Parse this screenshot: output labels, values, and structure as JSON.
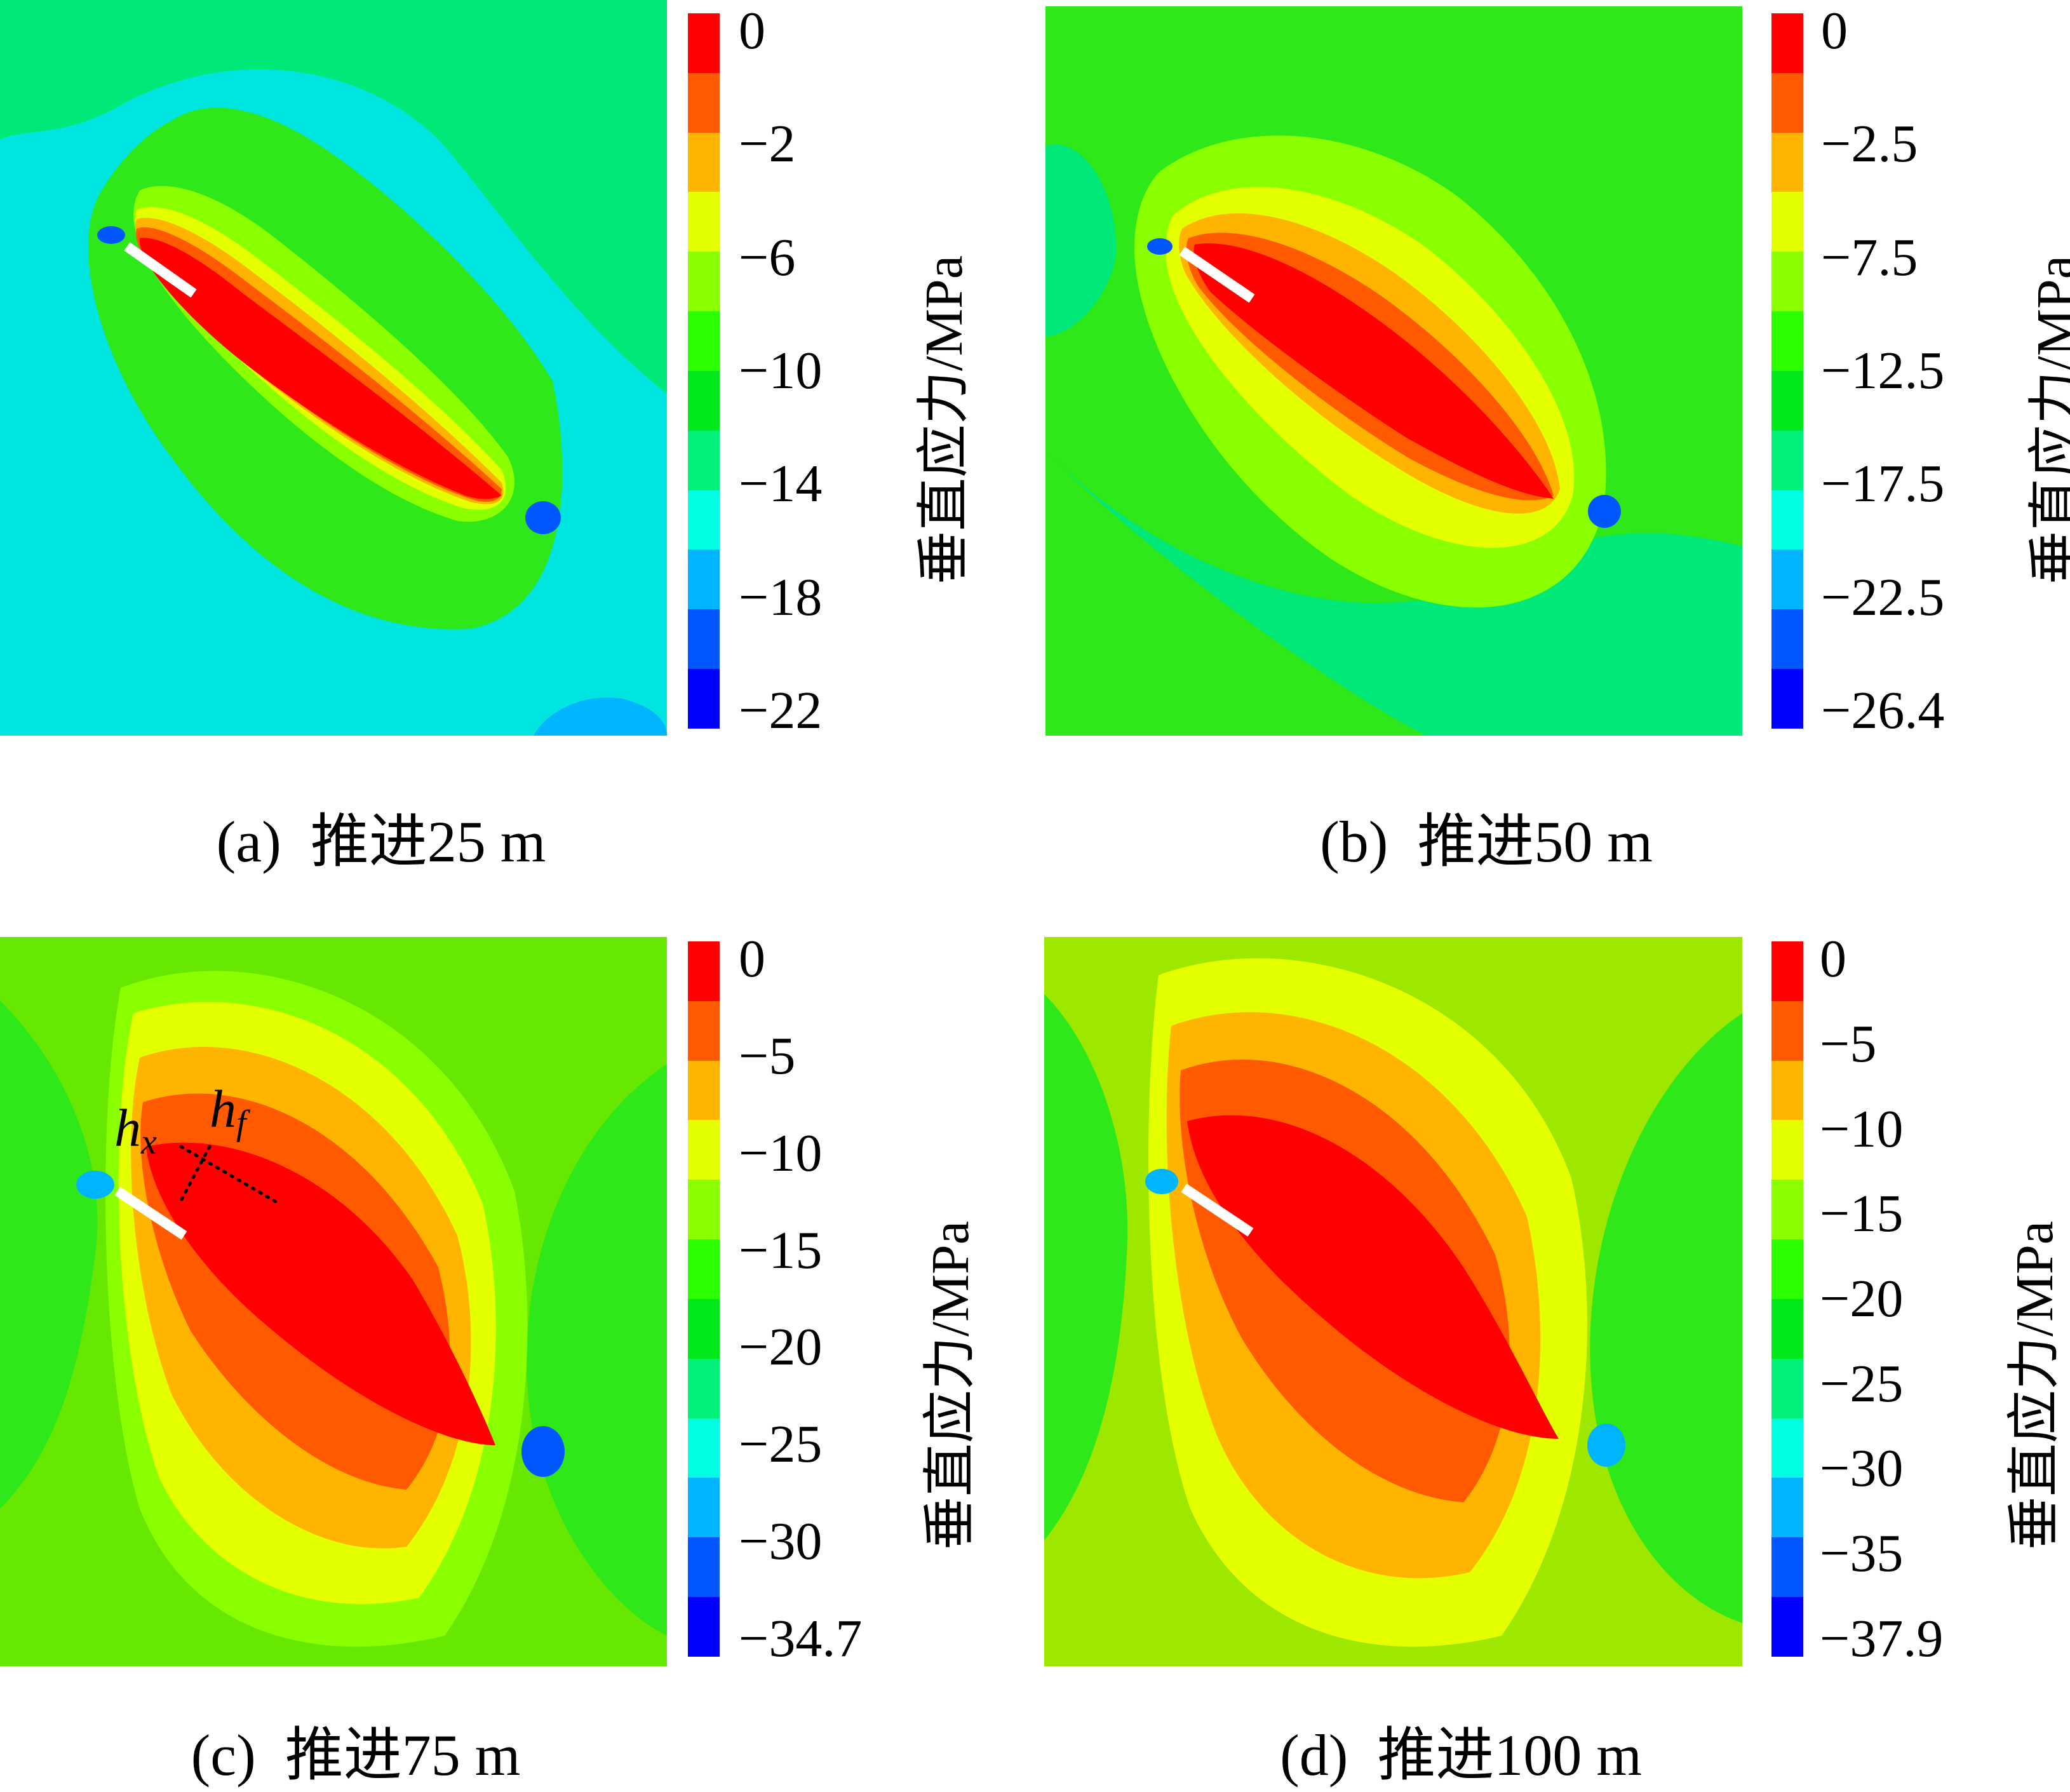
{
  "figure": {
    "colorbar_title": "垂直应力/MPa",
    "band_colors": [
      "#ff0000",
      "#ff5a00",
      "#ffb400",
      "#e4ff00",
      "#8aff00",
      "#2cff00",
      "#00e81a",
      "#00f07a",
      "#00ffe0",
      "#00b4ff",
      "#0056ff",
      "#0000ff"
    ]
  },
  "chart_data": [
    {
      "type": "heatmap",
      "panel": "a",
      "caption_label": "(a)",
      "caption_text": "推进25 m",
      "advance_m": 25,
      "colorbar_title": "垂直应力/MPa",
      "colorbar_ticks": [
        "0",
        "−2",
        "−6",
        "−10",
        "−14",
        "−18",
        "−22"
      ],
      "colorbar_range": [
        -22,
        0
      ],
      "background_color": "#00e5e0",
      "zones": [
        {
          "level": "−14 to −10",
          "color": "#00e878"
        },
        {
          "level": "−10 to −6",
          "color": "#2ee81a"
        },
        {
          "level": "−6 to −2",
          "color": "#ffb400"
        },
        {
          "level": "0 to −2",
          "color": "#ff0000"
        }
      ]
    },
    {
      "type": "heatmap",
      "panel": "b",
      "caption_label": "(b)",
      "caption_text": "推进50 m",
      "advance_m": 50,
      "colorbar_title": "垂直应力/MPa",
      "colorbar_ticks": [
        "0",
        "−2.5",
        "−7.5",
        "−12.5",
        "−17.5",
        "−22.5",
        "−26.4"
      ],
      "colorbar_range": [
        -26.4,
        0
      ],
      "background_color": "#2ee81a"
    },
    {
      "type": "heatmap",
      "panel": "c",
      "caption_label": "(c)",
      "caption_text": "推进75 m",
      "advance_m": 75,
      "colorbar_title": "垂直应力/MPa",
      "colorbar_ticks": [
        "0",
        "−5",
        "−10",
        "−15",
        "−20",
        "−25",
        "−30",
        "−34.7"
      ],
      "colorbar_range": [
        -34.7,
        0
      ],
      "background_color": "#66e800",
      "annotations": {
        "hx_base": "h",
        "hx_sub": "x",
        "hf_base": "h",
        "hf_sub": "f"
      }
    },
    {
      "type": "heatmap",
      "panel": "d",
      "caption_label": "(d)",
      "caption_text": "推进100 m",
      "advance_m": 100,
      "colorbar_title": "垂直应力/MPa",
      "colorbar_ticks": [
        "0",
        "−5",
        "−10",
        "−15",
        "−20",
        "−25",
        "−30",
        "−35",
        "−37.9"
      ],
      "colorbar_range": [
        -37.9,
        0
      ],
      "background_color": "#9ee800"
    }
  ]
}
